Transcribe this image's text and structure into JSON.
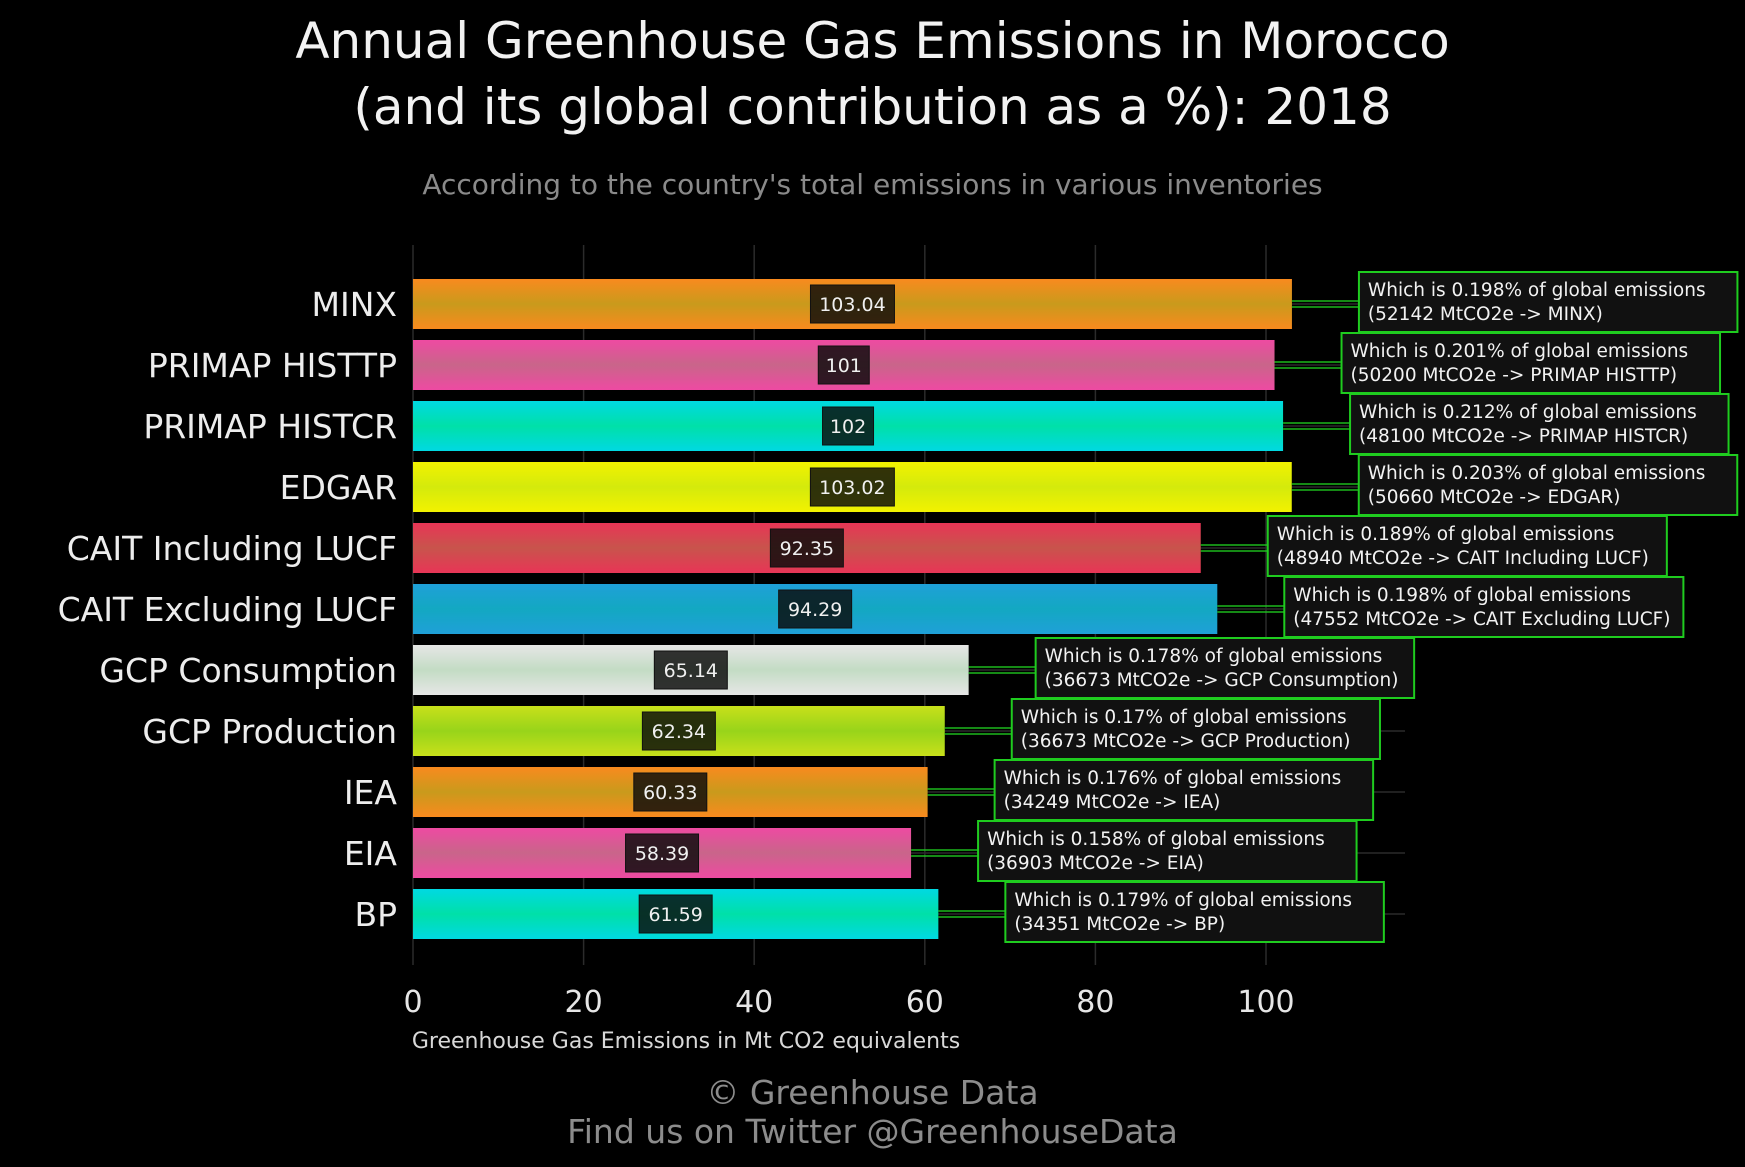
{
  "header": {
    "title_line1": "Annual Greenhouse Gas Emissions in Morocco",
    "title_line2": "(and its global contribution as a %): 2018",
    "subtitle": "According to the country's total emissions in various inventories"
  },
  "footer": {
    "line1": "© Greenhouse Data",
    "line2": "Find us on Twitter @GreenhouseData"
  },
  "chart_data": {
    "type": "bar",
    "orientation": "horizontal",
    "categories": [
      "MINX",
      "PRIMAP HISTTP",
      "PRIMAP HISTCR",
      "EDGAR",
      "CAIT Including LUCF",
      "CAIT Excluding LUCF",
      "GCP Consumption",
      "GCP Production",
      "IEA",
      "EIA",
      "BP"
    ],
    "values": [
      103.04,
      101,
      102,
      103.02,
      92.35,
      94.29,
      65.14,
      62.34,
      60.33,
      58.39,
      61.59
    ],
    "value_labels": [
      "103.04",
      "101",
      "102",
      "103.02",
      "92.35",
      "94.29",
      "65.14",
      "62.34",
      "60.33",
      "58.39",
      "61.59"
    ],
    "annotations": [
      {
        "line1": "Which is 0.198% of global emissions",
        "line2": "(52142 MtCO2e -> MINX)"
      },
      {
        "line1": "Which is 0.201% of global emissions",
        "line2": "(50200 MtCO2e -> PRIMAP HISTTP)"
      },
      {
        "line1": "Which is 0.212% of global emissions",
        "line2": "(48100 MtCO2e -> PRIMAP HISTCR)"
      },
      {
        "line1": "Which is 0.203% of global emissions",
        "line2": "(50660 MtCO2e -> EDGAR)"
      },
      {
        "line1": "Which is 0.189% of global emissions",
        "line2": "(48940 MtCO2e -> CAIT Including LUCF)"
      },
      {
        "line1": "Which is 0.198% of global emissions",
        "line2": "(47552 MtCO2e -> CAIT Excluding LUCF)"
      },
      {
        "line1": "Which is 0.178% of global emissions",
        "line2": "(36673 MtCO2e -> GCP Consumption)"
      },
      {
        "line1": "Which is 0.17% of global emissions",
        "line2": "(36673 MtCO2e -> GCP Production)"
      },
      {
        "line1": "Which is 0.176% of global emissions",
        "line2": "(34249 MtCO2e -> IEA)"
      },
      {
        "line1": "Which is 0.158% of global emissions",
        "line2": "(36903 MtCO2e -> EIA)"
      },
      {
        "line1": "Which is 0.179% of global emissions",
        "line2": "(34351 MtCO2e -> BP)"
      }
    ],
    "bar_colors": [
      [
        "#f98a1e",
        "#c99a1c"
      ],
      [
        "#ee4aa2",
        "#c9658a"
      ],
      [
        "#00d9e2",
        "#00e0a8"
      ],
      [
        "#f2f200",
        "#d4ea0c"
      ],
      [
        "#e83556",
        "#c8544c"
      ],
      [
        "#1fa0d8",
        "#13a8c2"
      ],
      [
        "#e6e6e6",
        "#c3dcc4"
      ],
      [
        "#c8e01a",
        "#98d41a"
      ],
      [
        "#f98a1e",
        "#c99a1c"
      ],
      [
        "#ee4aa2",
        "#c9658a"
      ],
      [
        "#00d9e2",
        "#00e0a8"
      ]
    ],
    "xlabel": "Greenhouse Gas Emissions in Mt CO2 equivalents",
    "xlim": [
      0,
      116
    ],
    "xticks": [
      0,
      20,
      40,
      60,
      80,
      100
    ],
    "grid": true,
    "annotation_border_color": "#1fcc1f",
    "annotation_bg_color": "#111111"
  }
}
